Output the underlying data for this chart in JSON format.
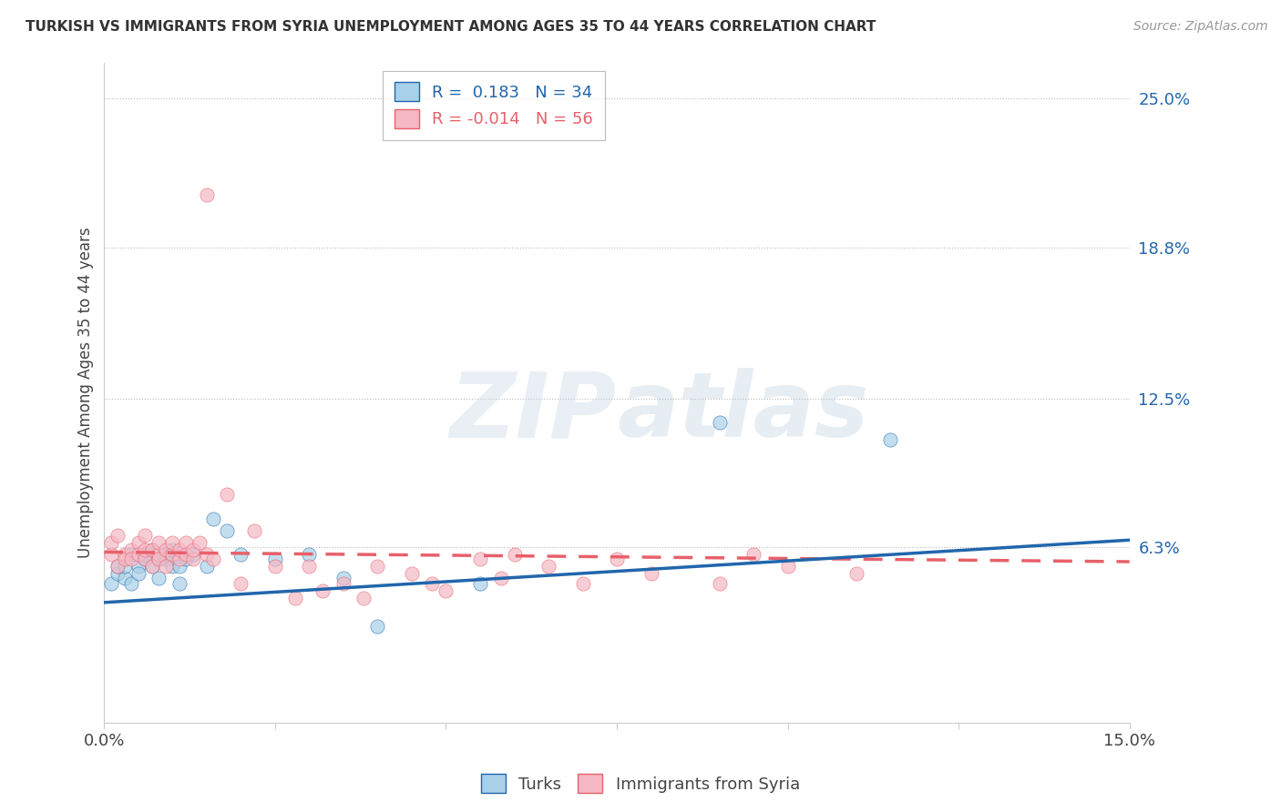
{
  "title": "TURKISH VS IMMIGRANTS FROM SYRIA UNEMPLOYMENT AMONG AGES 35 TO 44 YEARS CORRELATION CHART",
  "source": "Source: ZipAtlas.com",
  "ylabel": "Unemployment Among Ages 35 to 44 years",
  "xlim": [
    0.0,
    0.15
  ],
  "ylim": [
    -0.01,
    0.265
  ],
  "ytick_positions": [
    0.063,
    0.125,
    0.188,
    0.25
  ],
  "ytick_labels": [
    "6.3%",
    "12.5%",
    "18.8%",
    "25.0%"
  ],
  "turks_R": 0.183,
  "turks_N": 34,
  "syria_R": -0.014,
  "syria_N": 56,
  "turks_color": "#A8D0E8",
  "syria_color": "#F5B8C4",
  "turks_line_color": "#2166AC",
  "syria_line_color": "#E8606A",
  "background_color": "#FFFFFF",
  "turks_line_start_y": 0.04,
  "turks_line_end_y": 0.066,
  "syria_line_start_y": 0.061,
  "syria_line_end_y": 0.057,
  "turks_x": [
    0.001,
    0.002,
    0.002,
    0.003,
    0.003,
    0.004,
    0.004,
    0.005,
    0.005,
    0.006,
    0.006,
    0.007,
    0.007,
    0.008,
    0.008,
    0.009,
    0.009,
    0.01,
    0.01,
    0.011,
    0.011,
    0.012,
    0.013,
    0.015,
    0.016,
    0.018,
    0.02,
    0.025,
    0.03,
    0.035,
    0.04,
    0.055,
    0.09,
    0.115
  ],
  "turks_y": [
    0.048,
    0.052,
    0.055,
    0.05,
    0.055,
    0.048,
    0.06,
    0.055,
    0.052,
    0.058,
    0.06,
    0.055,
    0.062,
    0.058,
    0.05,
    0.06,
    0.058,
    0.055,
    0.062,
    0.048,
    0.055,
    0.058,
    0.06,
    0.055,
    0.075,
    0.07,
    0.06,
    0.058,
    0.06,
    0.05,
    0.03,
    0.048,
    0.115,
    0.108
  ],
  "syria_x": [
    0.001,
    0.001,
    0.002,
    0.002,
    0.003,
    0.003,
    0.004,
    0.004,
    0.005,
    0.005,
    0.006,
    0.006,
    0.006,
    0.007,
    0.007,
    0.008,
    0.008,
    0.008,
    0.009,
    0.009,
    0.01,
    0.01,
    0.011,
    0.011,
    0.012,
    0.012,
    0.013,
    0.013,
    0.014,
    0.015,
    0.015,
    0.016,
    0.018,
    0.02,
    0.022,
    0.025,
    0.028,
    0.03,
    0.032,
    0.035,
    0.038,
    0.04,
    0.045,
    0.048,
    0.05,
    0.055,
    0.058,
    0.06,
    0.065,
    0.07,
    0.075,
    0.08,
    0.09,
    0.095,
    0.1,
    0.11
  ],
  "syria_y": [
    0.06,
    0.065,
    0.055,
    0.068,
    0.06,
    0.058,
    0.062,
    0.058,
    0.065,
    0.06,
    0.058,
    0.062,
    0.068,
    0.055,
    0.062,
    0.06,
    0.058,
    0.065,
    0.062,
    0.055,
    0.06,
    0.065,
    0.058,
    0.062,
    0.065,
    0.06,
    0.058,
    0.062,
    0.065,
    0.06,
    0.21,
    0.058,
    0.085,
    0.048,
    0.07,
    0.055,
    0.042,
    0.055,
    0.045,
    0.048,
    0.042,
    0.055,
    0.052,
    0.048,
    0.045,
    0.058,
    0.05,
    0.06,
    0.055,
    0.048,
    0.058,
    0.052,
    0.048,
    0.06,
    0.055,
    0.052
  ]
}
